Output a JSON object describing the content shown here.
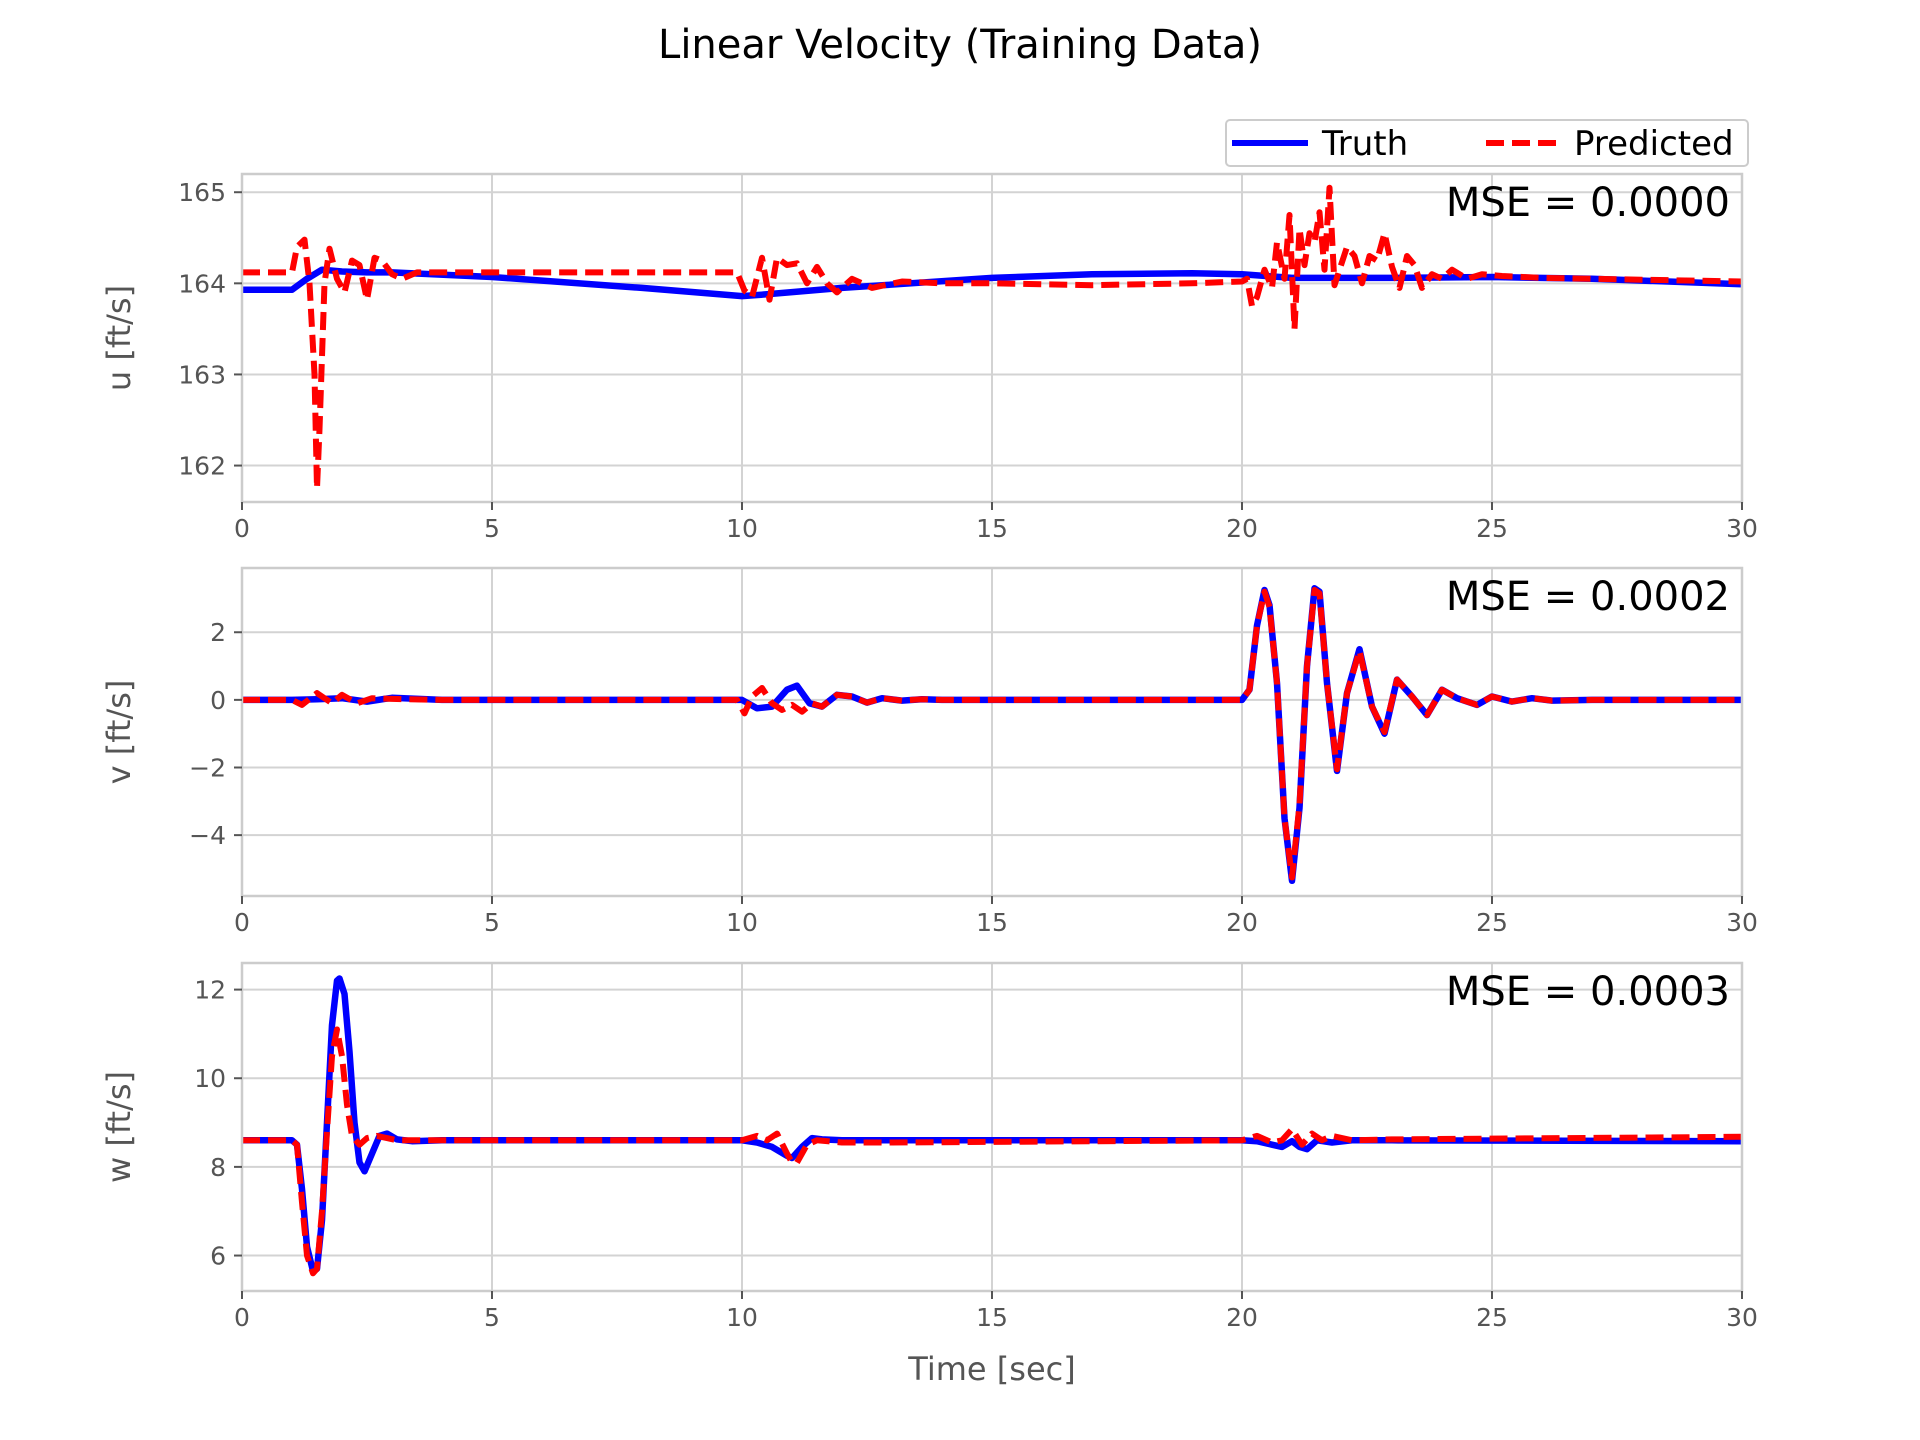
{
  "figure": {
    "title": "Linear Velocity (Training Data)"
  },
  "legend": {
    "truth_label": "Truth",
    "predicted_label": "Predicted"
  },
  "colors": {
    "truth": "#0000ff",
    "predicted": "#ff0000",
    "grid": "#d3d3d3",
    "spine": "#cccccc"
  },
  "chart_data": [
    {
      "type": "line",
      "id": "u",
      "ylabel": "u [ft/s]",
      "xlabel": "",
      "xlim": [
        0,
        30
      ],
      "ylim": [
        161.6,
        165.2
      ],
      "xticks": [
        0,
        5,
        10,
        15,
        20,
        25,
        30
      ],
      "xtick_labels": [
        "0",
        "5",
        "10",
        "15",
        "20",
        "25",
        "30"
      ],
      "yticks": [
        162,
        163,
        164,
        165
      ],
      "ytick_labels": [
        "162",
        "163",
        "164",
        "165"
      ],
      "annotation": "MSE = 0.0000",
      "grid": true,
      "legend": "top-right (above plot)",
      "series": [
        {
          "name": "Truth",
          "style": "solid",
          "x": [
            0,
            1,
            1.3,
            1.6,
            2,
            2.5,
            3,
            5,
            8,
            10,
            10.5,
            12,
            15,
            17,
            19,
            20,
            21,
            23,
            25,
            27,
            30
          ],
          "y": [
            163.93,
            163.93,
            164.05,
            164.15,
            164.13,
            164.12,
            164.12,
            164.07,
            163.95,
            163.86,
            163.88,
            163.95,
            164.06,
            164.1,
            164.11,
            164.1,
            164.06,
            164.06,
            164.07,
            164.05,
            163.99
          ]
        },
        {
          "name": "Predicted",
          "style": "dashed",
          "x": [
            0,
            1,
            1.1,
            1.25,
            1.35,
            1.45,
            1.5,
            1.55,
            1.65,
            1.75,
            1.9,
            2.05,
            2.2,
            2.35,
            2.5,
            2.65,
            2.8,
            3.0,
            3.2,
            3.5,
            4,
            5,
            7,
            9,
            9.9,
            10.05,
            10.2,
            10.4,
            10.55,
            10.7,
            10.9,
            11.1,
            11.3,
            11.5,
            11.7,
            11.9,
            12.2,
            12.6,
            13.2,
            14,
            15,
            17,
            19,
            20,
            20.1,
            20.2,
            20.3,
            20.45,
            20.6,
            20.7,
            20.85,
            20.95,
            21.05,
            21.15,
            21.25,
            21.35,
            21.45,
            21.55,
            21.65,
            21.75,
            21.85,
            21.95,
            22.1,
            22.25,
            22.4,
            22.55,
            22.7,
            22.85,
            23.0,
            23.15,
            23.3,
            23.45,
            23.6,
            23.8,
            24.0,
            24.2,
            24.5,
            24.8,
            25.2,
            26,
            28,
            30
          ],
          "y": [
            164.12,
            164.12,
            164.4,
            164.48,
            164.0,
            163.0,
            161.75,
            162.4,
            164.0,
            164.38,
            164.05,
            163.9,
            164.25,
            164.2,
            163.82,
            164.28,
            164.25,
            164.1,
            164.05,
            164.12,
            164.12,
            164.12,
            164.12,
            164.12,
            164.12,
            163.92,
            163.85,
            164.28,
            163.82,
            164.28,
            164.2,
            164.22,
            164.0,
            164.18,
            164.0,
            163.9,
            164.05,
            163.95,
            164.02,
            164.0,
            164.0,
            163.98,
            164.0,
            164.02,
            164.05,
            163.75,
            163.85,
            164.15,
            163.95,
            164.45,
            164.05,
            164.75,
            163.5,
            164.6,
            164.2,
            164.55,
            164.45,
            164.78,
            164.15,
            165.05,
            163.98,
            164.15,
            164.4,
            164.3,
            164.0,
            164.3,
            164.25,
            164.55,
            164.18,
            163.95,
            164.3,
            164.2,
            163.95,
            164.1,
            164.05,
            164.15,
            164.05,
            164.1,
            164.08,
            164.06,
            164.04,
            164.02
          ]
        }
      ]
    },
    {
      "type": "line",
      "id": "v",
      "ylabel": "v [ft/s]",
      "xlabel": "",
      "xlim": [
        0,
        30
      ],
      "ylim": [
        -5.8,
        3.9
      ],
      "xticks": [
        0,
        5,
        10,
        15,
        20,
        25,
        30
      ],
      "xtick_labels": [
        "0",
        "5",
        "10",
        "15",
        "20",
        "25",
        "30"
      ],
      "yticks": [
        -4,
        -2,
        0,
        2
      ],
      "ytick_labels": [
        "−4",
        "−2",
        "0",
        "2"
      ],
      "annotation": "MSE = 0.0002",
      "grid": true,
      "series": [
        {
          "name": "Truth",
          "style": "solid",
          "x": [
            0,
            1,
            1.5,
            2,
            2.5,
            3,
            4,
            10,
            10.3,
            10.6,
            10.9,
            11.1,
            11.35,
            11.6,
            11.9,
            12.2,
            12.5,
            12.8,
            13.2,
            13.6,
            14,
            20,
            20.15,
            20.3,
            20.45,
            20.55,
            20.7,
            20.85,
            21.0,
            21.15,
            21.3,
            21.45,
            21.55,
            21.7,
            21.9,
            22.1,
            22.35,
            22.6,
            22.85,
            23.1,
            23.4,
            23.7,
            24.0,
            24.3,
            24.7,
            25.0,
            25.4,
            25.8,
            26.2,
            27,
            30
          ],
          "y": [
            0,
            0,
            0.02,
            0.05,
            -0.05,
            0.06,
            0,
            0,
            -0.25,
            -0.2,
            0.3,
            0.42,
            -0.1,
            -0.2,
            0.15,
            0.1,
            -0.08,
            0.05,
            -0.02,
            0.02,
            0,
            0,
            0.3,
            2.2,
            3.25,
            2.8,
            0.5,
            -3.5,
            -5.35,
            -3.2,
            1.0,
            3.3,
            3.2,
            0.5,
            -2.1,
            0.2,
            1.5,
            -0.2,
            -1.0,
            0.6,
            0.1,
            -0.45,
            0.3,
            0.05,
            -0.15,
            0.1,
            -0.05,
            0.05,
            -0.02,
            0,
            0
          ]
        },
        {
          "name": "Predicted",
          "style": "dashed",
          "x": [
            0,
            1.0,
            1.2,
            1.5,
            1.8,
            2.0,
            2.3,
            2.6,
            3,
            4,
            9.9,
            10.05,
            10.2,
            10.4,
            10.6,
            10.8,
            11.0,
            11.2,
            11.4,
            11.6,
            11.9,
            12.2,
            12.5,
            12.8,
            13.2,
            13.6,
            14,
            20,
            20.15,
            20.3,
            20.45,
            20.55,
            20.7,
            20.85,
            21.0,
            21.15,
            21.3,
            21.45,
            21.55,
            21.7,
            21.9,
            22.1,
            22.35,
            22.6,
            22.85,
            23.1,
            23.4,
            23.7,
            24.0,
            24.3,
            24.7,
            25.0,
            25.4,
            25.8,
            26.2,
            27,
            30
          ],
          "y": [
            0,
            0,
            -0.15,
            0.2,
            -0.1,
            0.15,
            -0.1,
            0.05,
            0.03,
            0,
            0,
            -0.4,
            0.1,
            0.35,
            -0.1,
            -0.3,
            -0.15,
            -0.35,
            -0.1,
            -0.2,
            0.15,
            0.1,
            -0.08,
            0.05,
            -0.02,
            0.02,
            0,
            0,
            0.3,
            2.2,
            3.2,
            2.75,
            0.5,
            -3.5,
            -5.25,
            -3.1,
            1.0,
            3.25,
            3.15,
            0.5,
            -2.05,
            0.2,
            1.45,
            -0.2,
            -0.95,
            0.6,
            0.1,
            -0.45,
            0.3,
            0.05,
            -0.15,
            0.1,
            -0.05,
            0.05,
            -0.02,
            0,
            0
          ]
        }
      ]
    },
    {
      "type": "line",
      "id": "w",
      "ylabel": "w [ft/s]",
      "xlabel": "Time [sec]",
      "xlim": [
        0,
        30
      ],
      "ylim": [
        5.2,
        12.6
      ],
      "xticks": [
        0,
        5,
        10,
        15,
        20,
        25,
        30
      ],
      "xtick_labels": [
        "0",
        "5",
        "10",
        "15",
        "20",
        "25",
        "30"
      ],
      "yticks": [
        6,
        8,
        10,
        12
      ],
      "ytick_labels": [
        "6",
        "8",
        "10",
        "12"
      ],
      "annotation": "MSE = 0.0003",
      "grid": true,
      "series": [
        {
          "name": "Truth",
          "style": "solid",
          "x": [
            0,
            1.0,
            1.1,
            1.2,
            1.3,
            1.42,
            1.5,
            1.6,
            1.7,
            1.8,
            1.9,
            1.95,
            2.05,
            2.15,
            2.25,
            2.35,
            2.45,
            2.6,
            2.75,
            2.9,
            3.1,
            3.4,
            4,
            10,
            10.3,
            10.6,
            10.9,
            11.0,
            11.2,
            11.4,
            11.6,
            12,
            13,
            20,
            20.3,
            20.6,
            20.8,
            21.0,
            21.15,
            21.3,
            21.5,
            21.8,
            22.2,
            23,
            30
          ],
          "y": [
            8.6,
            8.6,
            8.5,
            7.5,
            6.2,
            5.65,
            5.7,
            6.8,
            9.0,
            11.2,
            12.2,
            12.25,
            11.9,
            10.6,
            9.0,
            8.1,
            7.9,
            8.3,
            8.7,
            8.75,
            8.62,
            8.58,
            8.6,
            8.6,
            8.55,
            8.45,
            8.25,
            8.2,
            8.45,
            8.65,
            8.62,
            8.6,
            8.6,
            8.6,
            8.58,
            8.5,
            8.45,
            8.58,
            8.45,
            8.4,
            8.6,
            8.55,
            8.6,
            8.6,
            8.58
          ]
        },
        {
          "name": "Predicted",
          "style": "dashed",
          "x": [
            0,
            1.0,
            1.1,
            1.2,
            1.3,
            1.42,
            1.5,
            1.6,
            1.7,
            1.8,
            1.9,
            2.0,
            2.1,
            2.2,
            2.35,
            2.5,
            2.7,
            2.9,
            3.1,
            3.4,
            4,
            10,
            10.3,
            10.5,
            10.7,
            10.9,
            11.0,
            11.1,
            11.3,
            11.5,
            12,
            13,
            20,
            20.3,
            20.6,
            20.8,
            21.0,
            21.2,
            21.4,
            21.6,
            21.8,
            22.2,
            23,
            30
          ],
          "y": [
            8.6,
            8.6,
            8.5,
            7.2,
            6.0,
            5.6,
            5.7,
            7.0,
            8.8,
            10.5,
            11.1,
            10.5,
            9.4,
            8.7,
            8.5,
            8.65,
            8.7,
            8.65,
            8.6,
            8.6,
            8.6,
            8.6,
            8.7,
            8.6,
            8.75,
            8.3,
            8.1,
            8.1,
            8.5,
            8.6,
            8.55,
            8.55,
            8.6,
            8.7,
            8.55,
            8.6,
            8.85,
            8.5,
            8.75,
            8.6,
            8.7,
            8.6,
            8.62,
            8.68
          ]
        }
      ]
    }
  ]
}
